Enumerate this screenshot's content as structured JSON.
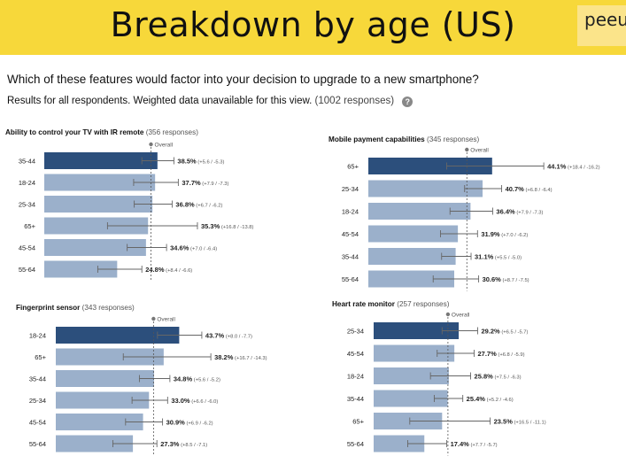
{
  "header": {
    "title": "Breakdown by age (US)",
    "logo_text": "peeu"
  },
  "question": "Which of these features would factor into your decision to upgrade to a new smartphone?",
  "subtitle": "Results for all respondents. Weighted data unavailable for this view.",
  "subtitle_responses": "(1002 responses)",
  "overall_label": "Overall",
  "colors": {
    "highlight": "#2c4f7c",
    "bar": "#9bb0cb",
    "error": "#666666",
    "overall": "#777777"
  },
  "chart_data": [
    {
      "type": "bar",
      "title": "Ability to control your TV with IR remote",
      "responses": "(356 responses)",
      "overall": 36.3,
      "categories": [
        "35-44",
        "18-24",
        "25-34",
        "65+",
        "45-54",
        "55-64"
      ],
      "values": [
        38.5,
        37.7,
        36.8,
        35.3,
        34.6,
        24.8
      ],
      "value_labels": [
        "38.5%",
        "37.7%",
        "36.8%",
        "35.3%",
        "34.6%",
        "24.8%"
      ],
      "error_plus": [
        5.6,
        7.9,
        6.7,
        16.8,
        7.0,
        8.4
      ],
      "error_minus": [
        5.3,
        7.3,
        6.2,
        13.8,
        6.4,
        6.6
      ],
      "error_labels": [
        "(+5.6 / -5.3)",
        "(+7.9 / -7.3)",
        "(+6.7 / -6.2)",
        "(+16.8 / -13.8)",
        "(+7.0 / -6.4)",
        "(+8.4 / -6.6)"
      ]
    },
    {
      "type": "bar",
      "title": "Mobile payment capabilities",
      "responses": "(345 responses)",
      "overall": 35.1,
      "categories": [
        "65+",
        "25-34",
        "18-24",
        "45-54",
        "35-44",
        "55-64"
      ],
      "values": [
        44.1,
        40.7,
        36.4,
        31.9,
        31.1,
        30.6
      ],
      "value_labels": [
        "44.1%",
        "40.7%",
        "36.4%",
        "31.9%",
        "31.1%",
        "30.6%"
      ],
      "error_plus": [
        18.4,
        6.8,
        7.9,
        7.0,
        5.5,
        8.7
      ],
      "error_minus": [
        16.2,
        6.4,
        7.3,
        6.2,
        5.0,
        7.5
      ],
      "error_labels": [
        "(+18.4 / -16.2)",
        "(+6.8 / -6.4)",
        "(+7.9 / -7.3)",
        "(+7.0 / -6.2)",
        "(+5.5 / -5.0)",
        "(+8.7 / -7.5)"
      ]
    },
    {
      "type": "bar",
      "title": "Fingerprint sensor",
      "responses": "(343 responses)",
      "overall": 34.6,
      "categories": [
        "18-24",
        "65+",
        "35-44",
        "25-34",
        "45-54",
        "55-64"
      ],
      "values": [
        43.7,
        38.2,
        34.8,
        33.0,
        30.9,
        27.3
      ],
      "value_labels": [
        "43.7%",
        "38.2%",
        "34.8%",
        "33.0%",
        "30.9%",
        "27.3%"
      ],
      "error_plus": [
        8.0,
        16.7,
        5.6,
        6.6,
        6.9,
        8.5
      ],
      "error_minus": [
        7.7,
        14.3,
        5.2,
        6.0,
        6.2,
        7.1
      ],
      "error_labels": [
        "(+8.0 / -7.7)",
        "(+16.7 / -14.3)",
        "(+5.6 / -5.2)",
        "(+6.6 / -6.0)",
        "(+6.9 / -6.2)",
        "(+8.5 / -7.1)"
      ]
    },
    {
      "type": "bar",
      "title": "Heart rate monitor",
      "responses": "(257 responses)",
      "overall": 25.5,
      "categories": [
        "25-34",
        "45-54",
        "18-24",
        "35-44",
        "65+",
        "55-64"
      ],
      "values": [
        29.2,
        27.7,
        25.8,
        25.4,
        23.5,
        17.4
      ],
      "value_labels": [
        "29.2%",
        "27.7%",
        "25.8%",
        "25.4%",
        "23.5%",
        "17.4%"
      ],
      "error_plus": [
        6.5,
        6.8,
        7.5,
        5.2,
        16.5,
        7.7
      ],
      "error_minus": [
        5.7,
        5.9,
        6.3,
        4.6,
        11.1,
        5.7
      ],
      "error_labels": [
        "(+6.5 / -5.7)",
        "(+6.8 / -5.9)",
        "(+7.5 / -6.3)",
        "(+5.2 / -4.6)",
        "(+16.5 / -11.1)",
        "(+7.7 / -5.7)"
      ]
    }
  ]
}
